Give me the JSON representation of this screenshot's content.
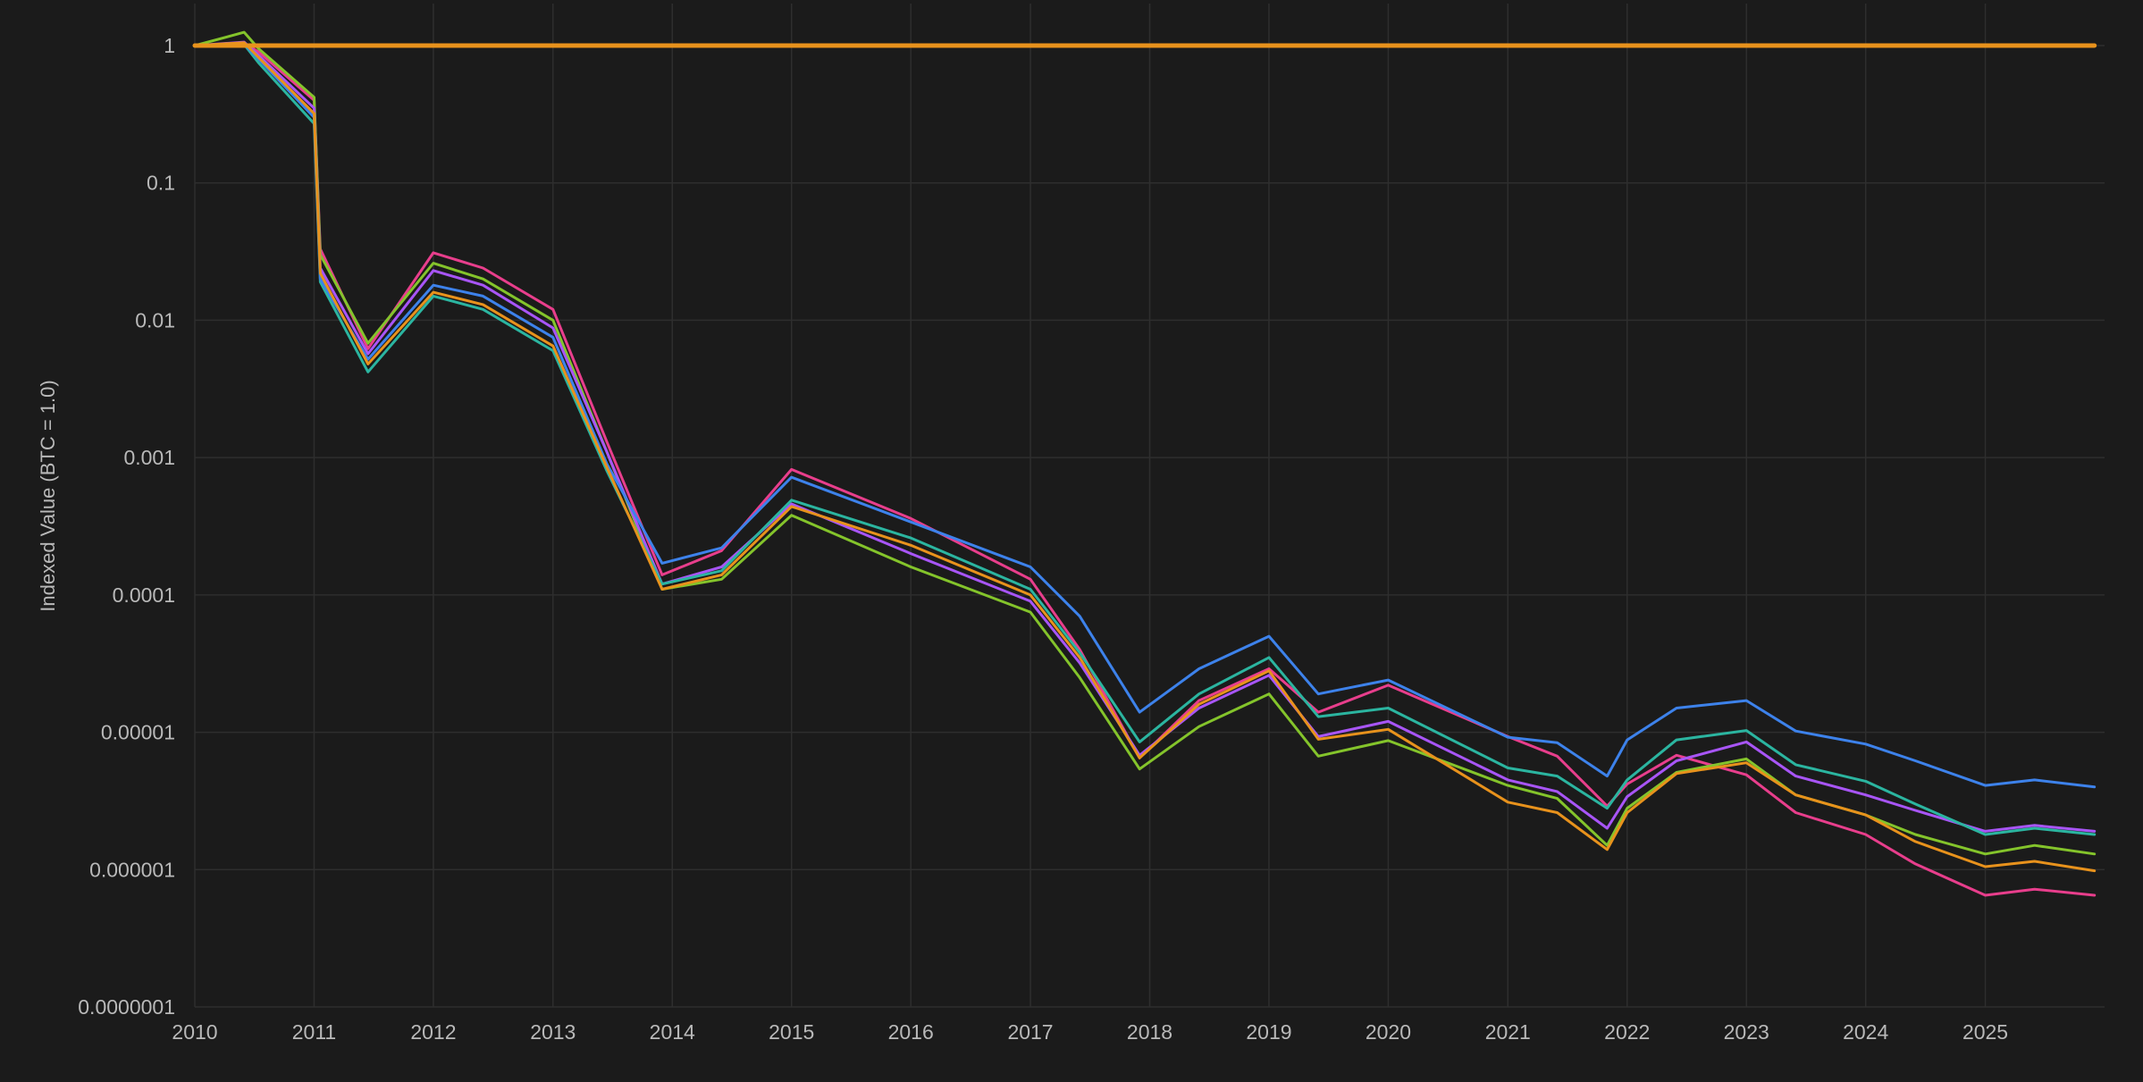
{
  "chart_data": {
    "type": "line",
    "title": "",
    "xlabel": "",
    "ylabel": "Indexed Value (BTC = 1.0)",
    "y_scale": "log",
    "grid": true,
    "legend": "none",
    "xlim": [
      "2010-01-01",
      "2025-12-01"
    ],
    "ylim": [
      1e-07,
      2
    ],
    "x_ticks": [
      "2010",
      "2011",
      "2012",
      "2013",
      "2014",
      "2015",
      "2016",
      "2017",
      "2018",
      "2019",
      "2020",
      "2021",
      "2022",
      "2023",
      "2024",
      "2025"
    ],
    "y_ticks": [
      {
        "value": 1,
        "label": "1"
      },
      {
        "value": 0.1,
        "label": "0.1"
      },
      {
        "value": 0.01,
        "label": "0.01"
      },
      {
        "value": 0.001,
        "label": "0.001"
      },
      {
        "value": 0.0001,
        "label": "0.0001"
      },
      {
        "value": 1e-05,
        "label": "0.00001"
      },
      {
        "value": 1e-06,
        "label": "0.000001"
      },
      {
        "value": 1e-07,
        "label": "0.0000001"
      }
    ],
    "series": [
      {
        "color": "#e8921c",
        "x": [
          "2010-01-01",
          "2025-12-01"
        ],
        "y": [
          1,
          1
        ]
      },
      {
        "color": "#e83e8c",
        "x": [
          "2010-01-01",
          "2010-06-01",
          "2010-07-15",
          "2011-01-01",
          "2011-01-20",
          "2011-06-15",
          "2012-01-01",
          "2012-06-01",
          "2013-01-01",
          "2013-06-15",
          "2013-12-01",
          "2014-06-01",
          "2015-01-01",
          "2016-01-01",
          "2017-01-01",
          "2017-06-01",
          "2017-12-01",
          "2018-06-01",
          "2019-01-01",
          "2019-06-01",
          "2020-01-01",
          "2021-01-01",
          "2021-06-01",
          "2021-11-01",
          "2022-01-01",
          "2022-06-01",
          "2023-01-01",
          "2023-06-01",
          "2024-01-01",
          "2024-06-01",
          "2025-01-01",
          "2025-06-01",
          "2025-12-01"
        ],
        "y": [
          1,
          1.04,
          0.9,
          0.4,
          0.033,
          0.0062,
          0.031,
          0.024,
          0.012,
          0.0013,
          0.00014,
          0.00021,
          0.00082,
          0.00036,
          0.00013,
          4e-05,
          6.5e-06,
          1.7e-05,
          2.9e-05,
          1.4e-05,
          2.2e-05,
          9.3e-06,
          6.7e-06,
          2.9e-06,
          4.2e-06,
          6.8e-06,
          4.9e-06,
          2.6e-06,
          1.8e-06,
          1.1e-06,
          6.5e-07,
          7.2e-07,
          6.5e-07
        ]
      },
      {
        "color": "#84c42b",
        "x": [
          "2010-01-01",
          "2010-06-01",
          "2010-07-15",
          "2011-01-01",
          "2011-01-20",
          "2011-06-15",
          "2012-01-01",
          "2012-06-01",
          "2013-01-01",
          "2013-06-15",
          "2013-12-01",
          "2014-06-01",
          "2015-01-01",
          "2016-01-01",
          "2017-01-01",
          "2017-06-01",
          "2017-12-01",
          "2018-06-01",
          "2019-01-01",
          "2019-06-01",
          "2020-01-01",
          "2021-01-01",
          "2021-06-01",
          "2021-11-01",
          "2022-01-01",
          "2022-06-01",
          "2023-01-01",
          "2023-06-01",
          "2024-01-01",
          "2024-06-01",
          "2025-01-01",
          "2025-06-01",
          "2025-12-01"
        ],
        "y": [
          1,
          1.25,
          0.95,
          0.42,
          0.03,
          0.0068,
          0.026,
          0.02,
          0.01,
          0.0011,
          0.00011,
          0.00013,
          0.00038,
          0.00016,
          7.5e-05,
          2.5e-05,
          5.4e-06,
          1.1e-05,
          1.9e-05,
          6.7e-06,
          8.7e-06,
          4.1e-06,
          3.3e-06,
          1.5e-06,
          2.8e-06,
          5.1e-06,
          6.4e-06,
          3.5e-06,
          2.5e-06,
          1.8e-06,
          1.3e-06,
          1.5e-06,
          1.3e-06
        ]
      },
      {
        "color": "#a855f7",
        "x": [
          "2010-01-01",
          "2010-06-01",
          "2010-07-15",
          "2011-01-01",
          "2011-01-20",
          "2011-06-15",
          "2012-01-01",
          "2012-06-01",
          "2013-01-01",
          "2013-06-15",
          "2013-12-01",
          "2014-06-01",
          "2015-01-01",
          "2016-01-01",
          "2017-01-01",
          "2017-06-01",
          "2017-12-01",
          "2018-06-01",
          "2019-01-01",
          "2019-06-01",
          "2020-01-01",
          "2021-01-01",
          "2021-06-01",
          "2021-11-01",
          "2022-01-01",
          "2022-06-01",
          "2023-01-01",
          "2023-06-01",
          "2024-01-01",
          "2024-06-01",
          "2025-01-01",
          "2025-06-01",
          "2025-12-01"
        ],
        "y": [
          1,
          1.06,
          0.85,
          0.35,
          0.024,
          0.0057,
          0.023,
          0.018,
          0.0088,
          0.0011,
          0.00012,
          0.00016,
          0.00046,
          0.0002,
          9e-05,
          3.2e-05,
          6.8e-06,
          1.5e-05,
          2.6e-05,
          9.3e-06,
          1.2e-05,
          4.5e-06,
          3.7e-06,
          2e-06,
          3.4e-06,
          6.2e-06,
          8.5e-06,
          4.8e-06,
          3.5e-06,
          2.7e-06,
          1.9e-06,
          2.1e-06,
          1.9e-06
        ]
      },
      {
        "color": "#2bb5a0",
        "x": [
          "2010-01-01",
          "2010-06-01",
          "2010-07-15",
          "2011-01-01",
          "2011-01-20",
          "2011-06-15",
          "2012-01-01",
          "2012-06-01",
          "2013-01-01",
          "2013-06-15",
          "2013-12-01",
          "2014-06-01",
          "2015-01-01",
          "2016-01-01",
          "2017-01-01",
          "2017-06-01",
          "2017-12-01",
          "2018-06-01",
          "2019-01-01",
          "2019-06-01",
          "2020-01-01",
          "2021-01-01",
          "2021-06-01",
          "2021-11-01",
          "2022-01-01",
          "2022-06-01",
          "2023-01-01",
          "2023-06-01",
          "2024-01-01",
          "2024-06-01",
          "2025-01-01",
          "2025-06-01",
          "2025-12-01"
        ],
        "y": [
          1,
          1.02,
          0.75,
          0.27,
          0.019,
          0.0042,
          0.015,
          0.012,
          0.006,
          0.0008,
          0.00012,
          0.00015,
          0.00049,
          0.00026,
          0.00011,
          3.8e-05,
          8.5e-06,
          1.9e-05,
          3.5e-05,
          1.3e-05,
          1.5e-05,
          5.5e-06,
          4.8e-06,
          2.8e-06,
          4.5e-06,
          8.8e-06,
          1.03e-05,
          5.8e-06,
          4.4e-06,
          3e-06,
          1.8e-06,
          2e-06,
          1.8e-06
        ]
      },
      {
        "color": "#3d82eb",
        "x": [
          "2010-01-01",
          "2010-06-01",
          "2010-07-15",
          "2011-01-01",
          "2011-01-20",
          "2011-06-15",
          "2012-01-01",
          "2012-06-01",
          "2013-01-01",
          "2013-06-15",
          "2013-12-01",
          "2014-06-01",
          "2015-01-01",
          "2016-01-01",
          "2017-01-01",
          "2017-06-01",
          "2017-12-01",
          "2018-06-01",
          "2019-01-01",
          "2019-06-01",
          "2020-01-01",
          "2021-01-01",
          "2021-06-01",
          "2021-11-01",
          "2022-01-01",
          "2022-06-01",
          "2023-01-01",
          "2023-06-01",
          "2024-01-01",
          "2024-06-01",
          "2025-01-01",
          "2025-06-01",
          "2025-12-01"
        ],
        "y": [
          1,
          1.03,
          0.8,
          0.3,
          0.02,
          0.0052,
          0.018,
          0.015,
          0.0075,
          0.0009,
          0.00017,
          0.00022,
          0.00072,
          0.00034,
          0.00016,
          7e-05,
          1.4e-05,
          2.9e-05,
          5e-05,
          1.9e-05,
          2.4e-05,
          9.2e-06,
          8.4e-06,
          4.8e-06,
          8.8e-06,
          1.5e-05,
          1.7e-05,
          1.02e-05,
          8.2e-06,
          6.2e-06,
          4.1e-06,
          4.5e-06,
          4e-06
        ]
      },
      {
        "color": "#e8921c",
        "x": [
          "2010-01-01",
          "2010-06-01",
          "2010-07-15",
          "2011-01-01",
          "2011-01-20",
          "2011-06-15",
          "2012-01-01",
          "2012-06-01",
          "2013-01-01",
          "2013-06-15",
          "2013-12-01",
          "2014-06-01",
          "2015-01-01",
          "2016-01-01",
          "2017-01-01",
          "2017-06-01",
          "2017-12-01",
          "2018-06-01",
          "2019-01-01",
          "2019-06-01",
          "2020-01-01",
          "2021-01-01",
          "2021-06-01",
          "2021-11-01",
          "2022-01-01",
          "2022-06-01",
          "2023-01-01",
          "2023-06-01",
          "2024-01-01",
          "2024-06-01",
          "2025-01-01",
          "2025-06-01",
          "2025-12-01"
        ],
        "y": [
          1,
          1.05,
          0.82,
          0.32,
          0.022,
          0.0048,
          0.016,
          0.013,
          0.0065,
          0.00085,
          0.00011,
          0.00014,
          0.00044,
          0.00023,
          0.0001,
          3.5e-05,
          6.5e-06,
          1.6e-05,
          2.8e-05,
          8.9e-06,
          1.05e-05,
          3.1e-06,
          2.6e-06,
          1.4e-06,
          2.6e-06,
          5e-06,
          6e-06,
          3.5e-06,
          2.5e-06,
          1.6e-06,
          1.05e-06,
          1.15e-06,
          9.8e-07
        ]
      }
    ]
  }
}
